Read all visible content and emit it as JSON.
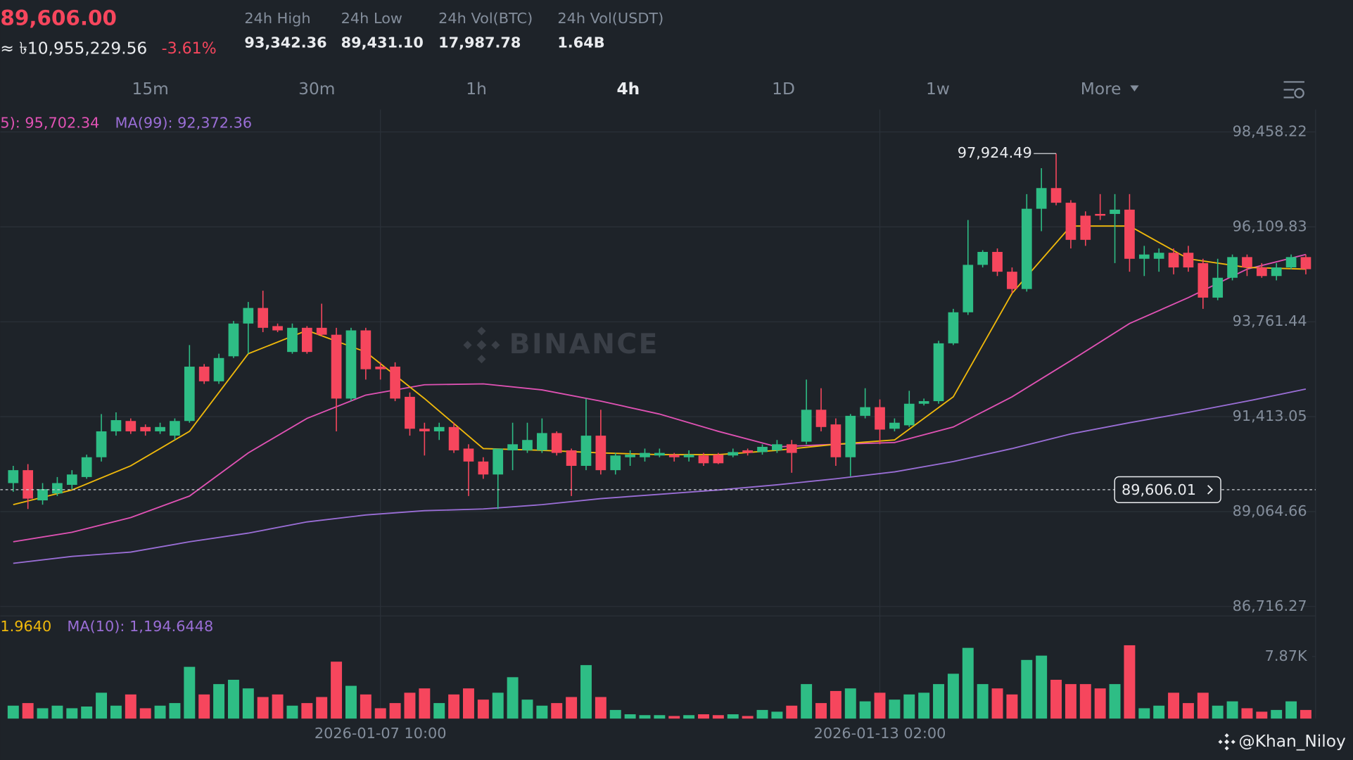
{
  "header": {
    "price": "89,606.00",
    "fiat": "≈ ৳10,955,229.56",
    "change": "-3.61%",
    "stats": [
      {
        "label": "24h High",
        "value": "93,342.36"
      },
      {
        "label": "24h Low",
        "value": "89,431.10"
      },
      {
        "label": "24h Vol(BTC)",
        "value": "17,987.78"
      },
      {
        "label": "24h Vol(USDT)",
        "value": "1.64B"
      }
    ]
  },
  "toolbar": {
    "intervals": [
      "15m",
      "30m",
      "1h",
      "4h",
      "1D",
      "1w",
      "More"
    ],
    "active": "4h"
  },
  "watermark": "BINANCE",
  "credit": "@Khan_Niloy",
  "chart_data": [
    {
      "type": "candlestick",
      "categories": [
        null,
        null,
        null,
        null,
        null,
        null,
        null,
        null,
        null,
        null,
        null,
        null,
        null,
        null,
        null,
        null,
        null,
        null,
        null,
        null,
        null,
        null,
        null,
        null,
        null,
        "2026-01-07 10:00",
        null,
        null,
        null,
        null,
        null,
        null,
        null,
        null,
        null,
        null,
        null,
        null,
        null,
        null,
        null,
        null,
        null,
        null,
        null,
        null,
        null,
        null,
        null,
        null,
        null,
        null,
        null,
        null,
        null,
        null,
        null,
        null,
        null,
        "2026-01-13 02:00",
        null,
        null,
        null,
        null,
        null,
        null,
        null,
        null,
        null,
        null,
        null,
        null,
        null,
        null,
        null,
        null,
        null,
        null,
        null,
        null,
        null,
        null,
        null,
        null,
        null,
        null,
        null,
        null,
        null
      ],
      "series": [
        {
          "up_color": "#2ebd85",
          "down_color": "#f6465d",
          "open": [
            89769,
            90089,
            89342,
            89513,
            89726,
            89919,
            90409,
            91050,
            91306,
            91157,
            91050,
            90943,
            91306,
            92651,
            92288,
            92907,
            93718,
            94103,
            93654,
            93014,
            93612,
            93612,
            93441,
            91861,
            93548,
            92651,
            92651,
            91904,
            91114,
            91050,
            91157,
            90623,
            90303,
            89982,
            90580,
            90580,
            90580,
            91007,
            90580,
            90196,
            90943,
            90089,
            90409,
            90409,
            90452,
            90473,
            90409,
            90452,
            90473,
            90452,
            90580,
            90537,
            90580,
            90730,
            90794,
            91584,
            91221,
            90409,
            91434,
            91648,
            91114,
            91199,
            91733,
            91797,
            93228,
            93996,
            95170,
            95490,
            95000,
            94572,
            96558,
            97070,
            96707,
            96387,
            96430,
            96430,
            96536,
            95320,
            95320,
            95469,
            95469,
            95213,
            94359,
            94850,
            95362,
            95106,
            94893,
            95106,
            95362
          ],
          "high": [
            90196,
            90239,
            89769,
            89919,
            90089,
            90473,
            91477,
            91520,
            91370,
            91221,
            91263,
            91370,
            93185,
            92715,
            92971,
            93782,
            94252,
            94530,
            93718,
            93718,
            93654,
            94209,
            93612,
            93612,
            93612,
            92758,
            92758,
            92011,
            91263,
            91263,
            91263,
            90730,
            90409,
            90623,
            91263,
            91263,
            91370,
            91050,
            90623,
            91861,
            91584,
            90516,
            90580,
            90623,
            90623,
            90516,
            90580,
            90516,
            90516,
            90623,
            90623,
            90730,
            90836,
            90836,
            92331,
            92117,
            91370,
            91477,
            92117,
            91840,
            91370,
            92053,
            91861,
            93291,
            94081,
            96280,
            95533,
            95576,
            95106,
            96921,
            97562,
            97924.49,
            96771,
            96494,
            96921,
            96921,
            96921,
            95640,
            95576,
            95576,
            95640,
            95320,
            95320,
            95426,
            95426,
            95213,
            95213,
            95426,
            95426
          ],
          "low": [
            89555,
            89128,
            89235,
            89449,
            89620,
            89875,
            90303,
            90943,
            90986,
            90943,
            90986,
            90836,
            91263,
            92224,
            92224,
            92864,
            92971,
            93505,
            93505,
            92971,
            92971,
            93398,
            91050,
            91797,
            92331,
            92331,
            91797,
            90943,
            90452,
            90836,
            90516,
            89449,
            89875,
            89128,
            90089,
            90516,
            90516,
            90452,
            89449,
            90089,
            89982,
            89982,
            90196,
            90303,
            90409,
            90303,
            90303,
            90196,
            90239,
            90409,
            90452,
            90473,
            90516,
            90025,
            90730,
            91050,
            90196,
            89940,
            91370,
            90730,
            91050,
            91157,
            91690,
            91733,
            93185,
            93932,
            95106,
            94893,
            94466,
            94509,
            96003,
            96644,
            95576,
            95640,
            96280,
            95213,
            95000,
            94893,
            95000,
            94935,
            95000,
            94081,
            94295,
            94786,
            94893,
            94850,
            94786,
            95063,
            94935
          ],
          "close": [
            90089,
            89385,
            89620,
            89769,
            89982,
            90409,
            91050,
            91327,
            91050,
            91050,
            91157,
            91306,
            92651,
            92288,
            92864,
            93718,
            94103,
            93612,
            93548,
            93612,
            93014,
            93441,
            91861,
            93548,
            92587,
            92587,
            91861,
            91114,
            91050,
            91157,
            90580,
            90303,
            89982,
            90623,
            90730,
            90836,
            91007,
            90516,
            90196,
            90943,
            90089,
            90452,
            90473,
            90516,
            90516,
            90409,
            90473,
            90260,
            90260,
            90537,
            90516,
            90666,
            90730,
            90516,
            91584,
            91157,
            90409,
            91434,
            91648,
            91093,
            91263,
            91733,
            91797,
            93228,
            93996,
            95170,
            95490,
            95000,
            94572,
            96558,
            97070,
            96707,
            95789,
            95789,
            96387,
            96536,
            95320,
            95426,
            95469,
            95106,
            95106,
            94359,
            94850,
            95362,
            95106,
            94893,
            95106,
            95362,
            95063
          ]
        }
      ],
      "overlays": [
        {
          "legend": "5): 95,702.34",
          "color": "#e052b4",
          "x": [
            0,
            4,
            8,
            12,
            16,
            20,
            24,
            28,
            32,
            36,
            40,
            44,
            48,
            52,
            56,
            60,
            64,
            68,
            72,
            76,
            80,
            84,
            88
          ],
          "values": [
            88318,
            88553,
            88915,
            89449,
            90517,
            91371,
            91947,
            92203,
            92225,
            92075,
            91798,
            91477,
            91050,
            90666,
            90730,
            90773,
            91157,
            91904,
            92801,
            93719,
            94360,
            95064,
            95427
          ]
        },
        {
          "legend": "MA(99): 92,372.36",
          "color": "#9a6ed6",
          "x": [
            0,
            4,
            8,
            12,
            16,
            20,
            24,
            28,
            32,
            36,
            40,
            44,
            48,
            52,
            56,
            60,
            64,
            68,
            72,
            76,
            80,
            84,
            88
          ],
          "values": [
            87784,
            87955,
            88062,
            88318,
            88531,
            88809,
            88980,
            89086,
            89128,
            89235,
            89385,
            89492,
            89599,
            89726,
            89875,
            90047,
            90303,
            90623,
            90986,
            91263,
            91520,
            91798,
            92097
          ]
        },
        {
          "color": "#f0b90b",
          "x": [
            0,
            4,
            8,
            12,
            16,
            20,
            24,
            28,
            32,
            36,
            40,
            44,
            48,
            52,
            56,
            60,
            64,
            68,
            72,
            76,
            80,
            84,
            88
          ],
          "values": [
            89235,
            89599,
            90196,
            91050,
            92971,
            93548,
            93014,
            91861,
            90623,
            90580,
            90517,
            90473,
            90473,
            90580,
            90730,
            90836,
            91904,
            94466,
            96131,
            96131,
            95320,
            95106,
            95064
          ]
        }
      ],
      "high_label": "97,924.49",
      "last_price": {
        "value": 89606.01,
        "label": "89,606.01"
      },
      "ylim": [
        86503,
        99013
      ],
      "yticks": [
        {
          "value": 98458.22,
          "label": "98,458.22"
        },
        {
          "value": 96109.83,
          "label": "96,109.83"
        },
        {
          "value": 93761.44,
          "label": "93,761.44"
        },
        {
          "value": 91413.05,
          "label": "91,413.05"
        },
        {
          "value": 89064.66,
          "label": "89,064.66"
        },
        {
          "value": 86716.27,
          "label": "86,716.27"
        }
      ],
      "grid": true
    },
    {
      "type": "bar",
      "legend": [
        {
          "text": "1.9640",
          "color": "#f0b90b"
        },
        {
          "text": "MA(10): 1,194.6448",
          "color": "#9a6ed6"
        }
      ],
      "values": [
        1640,
        1967,
        1312,
        1640,
        1312,
        1530,
        3279,
        1640,
        3060,
        1312,
        1640,
        1967,
        6558,
        3060,
        4372,
        4919,
        3826,
        2733,
        3060,
        1640,
        1967,
        2733,
        7214,
        4153,
        3060,
        1312,
        1967,
        3279,
        3826,
        1967,
        3060,
        3826,
        2405,
        3279,
        5246,
        2405,
        1640,
        1967,
        2733,
        6777,
        2733,
        1093,
        547,
        437,
        437,
        328,
        437,
        547,
        437,
        547,
        328,
        1093,
        874,
        1640,
        4372,
        1967,
        3498,
        3826,
        2186,
        3279,
        2405,
        3060,
        3279,
        4372,
        5684,
        8963,
        4372,
        3826,
        3060,
        7432,
        7979,
        4919,
        4372,
        4372,
        3826,
        4372,
        9291,
        1312,
        1640,
        3279,
        1967,
        3279,
        1640,
        2186,
        1312,
        874,
        1093,
        2186,
        1093
      ],
      "ylim": [
        0,
        12898
      ],
      "yticks": [
        {
          "value": 7870,
          "label": "7.87K"
        }
      ]
    }
  ]
}
